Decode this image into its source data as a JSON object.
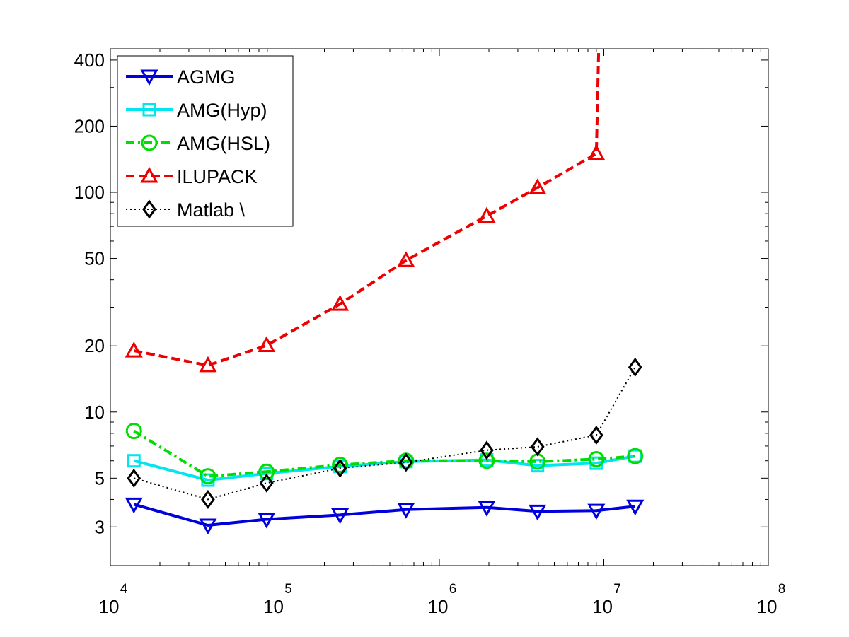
{
  "chart_data": {
    "type": "line",
    "x_scale": "log",
    "y_scale": "log",
    "xlim": [
      10000,
      100000000
    ],
    "ylim": [
      2,
      450
    ],
    "x_ticks": [
      {
        "value": 10000,
        "base": "10",
        "exp": "4"
      },
      {
        "value": 100000,
        "base": "10",
        "exp": "5"
      },
      {
        "value": 1000000,
        "base": "10",
        "exp": "6"
      },
      {
        "value": 10000000,
        "base": "10",
        "exp": "7"
      },
      {
        "value": 100000000,
        "base": "10",
        "exp": "8"
      }
    ],
    "y_ticks": [
      {
        "value": 3,
        "label": "3"
      },
      {
        "value": 5,
        "label": "5"
      },
      {
        "value": 10,
        "label": "10"
      },
      {
        "value": 20,
        "label": "20"
      },
      {
        "value": 50,
        "label": "50"
      },
      {
        "value": 100,
        "label": "100"
      },
      {
        "value": 200,
        "label": "200"
      },
      {
        "value": 400,
        "label": "400"
      }
    ],
    "grid": false,
    "legend_position": "top-left",
    "series": [
      {
        "name": "AGMG",
        "color": "#0000dd",
        "line": "solid",
        "marker": "triangle-down",
        "points": [
          [
            13900,
            3.8
          ],
          [
            39200,
            3.05
          ],
          [
            89000,
            3.25
          ],
          [
            249000,
            3.4
          ],
          [
            627000,
            3.6
          ],
          [
            1940000,
            3.68
          ],
          [
            3950000,
            3.53
          ],
          [
            9000000,
            3.56
          ],
          [
            15500000,
            3.72
          ]
        ]
      },
      {
        "name": "AMG(Hyp)",
        "color": "#00e5ee",
        "line": "solid",
        "marker": "square",
        "points": [
          [
            13900,
            6.0
          ],
          [
            39200,
            4.9
          ],
          [
            89000,
            5.25
          ],
          [
            249000,
            5.65
          ],
          [
            627000,
            5.95
          ],
          [
            1940000,
            6.05
          ],
          [
            3950000,
            5.7
          ],
          [
            9000000,
            5.85
          ],
          [
            15500000,
            6.3
          ]
        ]
      },
      {
        "name": "AMG(HSL)",
        "color": "#00dd00",
        "line": "dashdot",
        "marker": "circle",
        "points": [
          [
            13900,
            8.2
          ],
          [
            39200,
            5.1
          ],
          [
            89000,
            5.35
          ],
          [
            249000,
            5.75
          ],
          [
            627000,
            6.0
          ],
          [
            1940000,
            6.0
          ],
          [
            3950000,
            5.95
          ],
          [
            9000000,
            6.1
          ],
          [
            15500000,
            6.3
          ]
        ]
      },
      {
        "name": "ILUPACK",
        "color": "#ee0000",
        "line": "dashed",
        "marker": "triangle-up",
        "points": [
          [
            13900,
            19.0
          ],
          [
            39200,
            16.3
          ],
          [
            89000,
            20.1
          ],
          [
            249000,
            31.0
          ],
          [
            627000,
            49.0
          ],
          [
            1940000,
            78.0
          ],
          [
            3950000,
            105.0
          ],
          [
            9000000,
            150.0
          ],
          [
            9300000,
            450.0
          ]
        ]
      },
      {
        "name": "Matlab \\",
        "color": "#000000",
        "line": "dotted",
        "marker": "diamond",
        "points": [
          [
            13900,
            5.0
          ],
          [
            39200,
            4.0
          ],
          [
            89000,
            4.75
          ],
          [
            249000,
            5.55
          ],
          [
            627000,
            5.9
          ],
          [
            1940000,
            6.7
          ],
          [
            3950000,
            6.95
          ],
          [
            9000000,
            7.85
          ],
          [
            15500000,
            16.0
          ]
        ]
      }
    ]
  }
}
